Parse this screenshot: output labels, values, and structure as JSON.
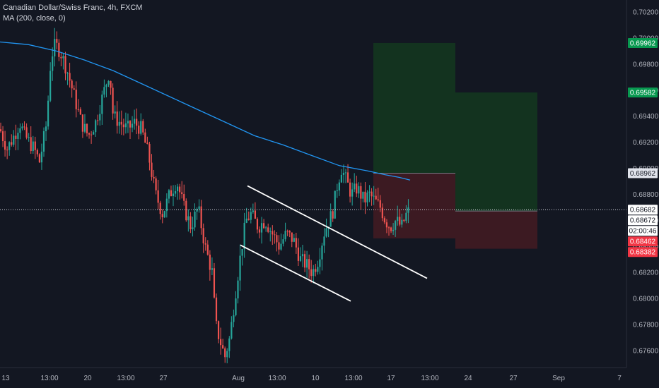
{
  "legend": {
    "symbol_line": "Canadian Dollar/Swiss Franc, 4h, FXCM",
    "indicator_line": "MA (200, close, 0)"
  },
  "chart_data": {
    "type": "candlestick",
    "title": "Canadian Dollar/Swiss Franc, 4h, FXCM",
    "indicator": "MA (200, close, 0)",
    "ylim": [
      0.675,
      0.7025
    ],
    "y_ticks": [
      "0.70200",
      "0.70000",
      "0.69800",
      "0.69600",
      "0.69400",
      "0.69200",
      "0.69000",
      "0.68800",
      "0.68600",
      "0.68400",
      "0.68200",
      "0.68000",
      "0.67800",
      "0.67600"
    ],
    "x_ticks": [
      "13",
      "13:00",
      "20",
      "13:00",
      "27",
      "Aug",
      "13:00",
      "10",
      "13:00",
      "17",
      "13:00",
      "24",
      "27",
      "Sep",
      "7"
    ],
    "price_path": [
      [
        0,
        0.693
      ],
      [
        10,
        0.6915
      ],
      [
        20,
        0.6925
      ],
      [
        28,
        0.6935
      ],
      [
        35,
        0.6925
      ],
      [
        48,
        0.6915
      ],
      [
        56,
        0.6905
      ],
      [
        66,
        0.6935
      ],
      [
        72,
        0.6985
      ],
      [
        78,
        0.6995
      ],
      [
        85,
        0.699
      ],
      [
        95,
        0.6975
      ],
      [
        105,
        0.6955
      ],
      [
        115,
        0.6935
      ],
      [
        125,
        0.6925
      ],
      [
        135,
        0.6935
      ],
      [
        145,
        0.6955
      ],
      [
        155,
        0.6975
      ],
      [
        160,
        0.694
      ],
      [
        170,
        0.6935
      ],
      [
        180,
        0.693
      ],
      [
        190,
        0.6935
      ],
      [
        200,
        0.693
      ],
      [
        210,
        0.691
      ],
      [
        220,
        0.688
      ],
      [
        230,
        0.6865
      ],
      [
        240,
        0.688
      ],
      [
        250,
        0.689
      ],
      [
        260,
        0.687
      ],
      [
        270,
        0.6855
      ],
      [
        280,
        0.687
      ],
      [
        290,
        0.684
      ],
      [
        300,
        0.682
      ],
      [
        305,
        0.678
      ],
      [
        310,
        0.677
      ],
      [
        318,
        0.6755
      ],
      [
        325,
        0.677
      ],
      [
        332,
        0.68
      ],
      [
        338,
        0.6825
      ],
      [
        342,
        0.684
      ],
      [
        348,
        0.686
      ],
      [
        355,
        0.6865
      ],
      [
        365,
        0.6855
      ],
      [
        375,
        0.686
      ],
      [
        385,
        0.685
      ],
      [
        395,
        0.684
      ],
      [
        405,
        0.685
      ],
      [
        415,
        0.6845
      ],
      [
        425,
        0.683
      ],
      [
        435,
        0.6825
      ],
      [
        442,
        0.682
      ],
      [
        450,
        0.683
      ],
      [
        458,
        0.685
      ],
      [
        465,
        0.686
      ],
      [
        470,
        0.6865
      ],
      [
        478,
        0.689
      ],
      [
        483,
        0.69
      ],
      [
        490,
        0.689
      ],
      [
        497,
        0.688
      ],
      [
        505,
        0.6885
      ],
      [
        515,
        0.6875
      ],
      [
        522,
        0.688
      ],
      [
        530,
        0.6875
      ],
      [
        538,
        0.687
      ],
      [
        545,
        0.686
      ],
      [
        552,
        0.6855
      ],
      [
        560,
        0.686
      ],
      [
        568,
        0.6855
      ],
      [
        575,
        0.6865
      ],
      [
        580,
        0.6868
      ]
    ],
    "ma_path": [
      [
        0,
        0.6997
      ],
      [
        40,
        0.6995
      ],
      [
        80,
        0.699
      ],
      [
        120,
        0.6983
      ],
      [
        160,
        0.6975
      ],
      [
        200,
        0.6965
      ],
      [
        240,
        0.6955
      ],
      [
        280,
        0.6945
      ],
      [
        320,
        0.6935
      ],
      [
        360,
        0.6925
      ],
      [
        400,
        0.6918
      ],
      [
        440,
        0.691
      ],
      [
        480,
        0.6902
      ],
      [
        520,
        0.6898
      ],
      [
        545,
        0.6895
      ],
      [
        565,
        0.6893
      ],
      [
        580,
        0.6891
      ]
    ],
    "channel_lines": [
      {
        "from": [
          350,
          0.68865
        ],
        "to": [
          604,
          0.68155
        ]
      },
      {
        "from": [
          340,
          0.6841
        ],
        "to": [
          496,
          0.6798
        ]
      }
    ],
    "positions": [
      {
        "start": 528,
        "end": 644,
        "entry": 0.68962,
        "target": 0.69962,
        "stop": 0.68462
      },
      {
        "start": 644,
        "end": 760,
        "entry": 0.68672,
        "target": 0.69582,
        "stop": 0.68382
      }
    ],
    "current_price_line": 0.68682,
    "price_badges": [
      {
        "label": "0.69962",
        "price": 0.69962,
        "color": "#089950",
        "text_color": "#ffffff"
      },
      {
        "label": "0.69582",
        "price": 0.69582,
        "color": "#089950",
        "text_color": "#ffffff"
      },
      {
        "label": "0.68962",
        "price": 0.68962,
        "color": "#e0e3eb",
        "text_color": "#131722"
      },
      {
        "label": "0.68682",
        "price": 0.68682,
        "color": "#ffffff",
        "text_color": "#131722"
      },
      {
        "label": "0.68672",
        "price": 0.68672,
        "color": "#ffffff",
        "text_color": "#131722"
      },
      {
        "label": "02:00:46",
        "price": 0.68612,
        "color": "#ffffff",
        "text_color": "#131722"
      },
      {
        "label": "0.68462",
        "price": 0.68462,
        "color": "#f23645",
        "text_color": "#ffffff"
      },
      {
        "label": "0.68382",
        "price": 0.68382,
        "color": "#f23645",
        "text_color": "#ffffff"
      }
    ],
    "colors": {
      "background": "#131722",
      "up": "#26a69a",
      "down": "#ef5350",
      "ma": "#2196f3",
      "profit_zone": "#13331f",
      "loss_zone": "#3c1a22",
      "trendline": "#ffffff",
      "axis_text": "#b2b5be"
    }
  }
}
